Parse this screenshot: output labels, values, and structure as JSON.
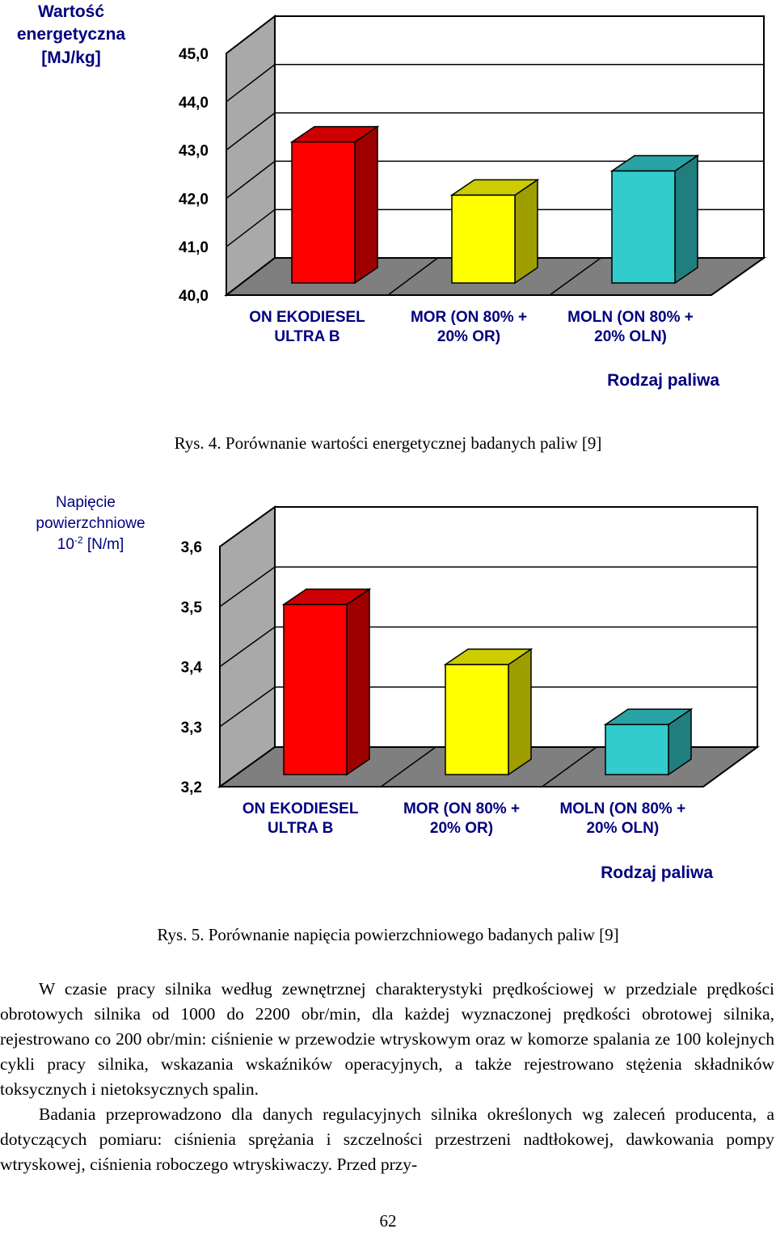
{
  "charts": [
    {
      "ylabel_lines": [
        "Wartość",
        "energetyczna",
        "[MJ/kg]"
      ],
      "xlabel": "Rodzaj paliwa",
      "caption": "Rys. 4. Porównanie wartości energetycznej badanych paliw [9]"
    },
    {
      "ylabel_lines": [
        "Napięcie",
        "powierzchniowe"
      ],
      "ylabel_unit": {
        "base": "10",
        "exp": "-2",
        "rest": " [N/m]"
      },
      "xlabel": "Rodzaj paliwa",
      "caption": "Rys. 5. Porównanie napięcia powierzchniowego badanych paliw [9]"
    }
  ],
  "chart_data": [
    {
      "type": "bar",
      "categories": [
        [
          "ON EKODIESEL",
          "ULTRA  B"
        ],
        [
          "MOR (ON 80% +",
          "20% OR)"
        ],
        [
          "MOLN (ON 80% +",
          "20% OLN)"
        ]
      ],
      "values": [
        43.0,
        41.9,
        42.4
      ],
      "yticks": [
        "40,0",
        "41,0",
        "42,0",
        "43,0",
        "44,0",
        "45,0"
      ],
      "ylim": [
        40.0,
        45.0
      ],
      "ylabel": "Wartość energetyczna [MJ/kg]",
      "xlabel": "Rodzaj paliwa",
      "colors": [
        "#ff0000",
        "#ffff00",
        "#33cccc"
      ]
    },
    {
      "type": "bar",
      "categories": [
        [
          "ON EKODIESEL",
          "ULTRA  B"
        ],
        [
          "MOR (ON 80% +",
          "20% OR)"
        ],
        [
          "MOLN (ON 80% +",
          "20% OLN)"
        ]
      ],
      "values": [
        3.49,
        3.39,
        3.29
      ],
      "yticks": [
        "3,2",
        "3,3",
        "3,4",
        "3,5",
        "3,6"
      ],
      "ylim": [
        3.2,
        3.6
      ],
      "ylabel": "Napięcie powierzchniowe 10-2 [N/m]",
      "xlabel": "Rodzaj paliwa",
      "colors": [
        "#ff0000",
        "#ffff00",
        "#33cccc"
      ]
    }
  ],
  "text": {
    "paragraph1": "W czasie pracy silnika według zewnętrznej charakterystyki prędkościowej w przedziale prędkości obrotowych silnika od 1000 do 2200 obr/min, dla każdej wyznaczonej prędkości obrotowej silnika, rejestrowano co 200 obr/min: ciśnienie w przewodzie wtryskowym oraz w  komorze spalania ze 100 kolejnych cykli pracy silnika, wskazania wskaźników operacyjnych, a także rejestrowano stężenia składników toksycznych i nietoksycznych spalin.",
    "paragraph2": "Badania przeprowadzono dla danych regulacyjnych silnika określonych wg zaleceń producenta, a dotyczących pomiaru: ciśnienia sprężania i szczelności przestrzeni nadtłokowej, dawkowania pompy wtryskowej, ciśnienia roboczego wtryskiwaczy. Przed przy-",
    "page_number": "62"
  }
}
